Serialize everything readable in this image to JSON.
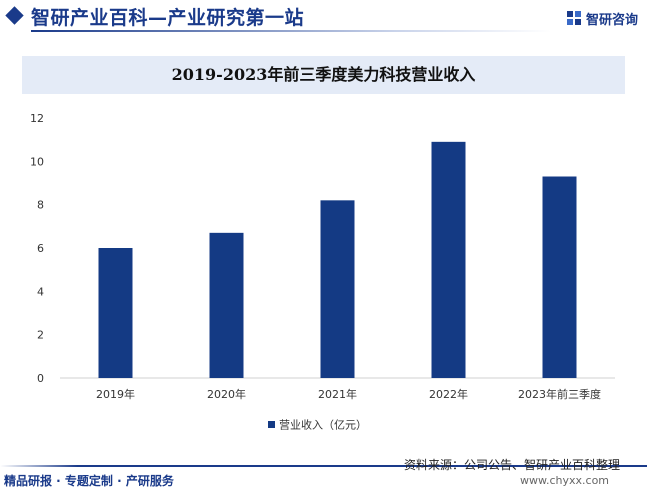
{
  "header": {
    "title": "智研产业百科—产业研究第一站",
    "brand_name": "智研咨询",
    "brand_color": "#1a3a8a"
  },
  "chart_data": {
    "type": "bar",
    "title": "2019-2023年前三季度美力科技营业收入",
    "categories": [
      "2019年",
      "2020年",
      "2021年",
      "2022年",
      "2023年前三季度"
    ],
    "series": [
      {
        "name": "营业收入（亿元）",
        "color": "#143a84",
        "values": [
          6.0,
          6.7,
          8.2,
          10.9,
          9.3
        ]
      }
    ],
    "ylim": [
      0,
      12
    ],
    "yticks": [
      0,
      2,
      4,
      6,
      8,
      10,
      12
    ],
    "xlabel": "",
    "ylabel": "",
    "grid": false,
    "legend": "bottom"
  },
  "footer": {
    "left_text": "精品研报 · 专题定制 · 产研服务",
    "source": "资料来源：公司公告、智研产业百科整理",
    "website": "www.chyxx.com"
  }
}
